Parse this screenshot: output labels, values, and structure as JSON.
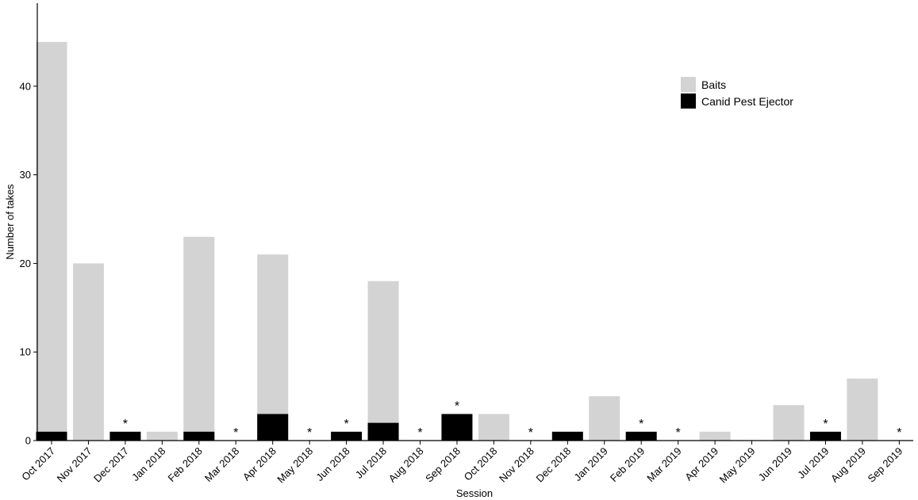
{
  "chart_data": {
    "type": "bar",
    "stacked": false,
    "xlabel": "Session",
    "ylabel": "Number of takes",
    "ylim": [
      0,
      49
    ],
    "yticks": [
      0,
      10,
      20,
      30,
      40
    ],
    "grid": false,
    "legend_position": "top-right",
    "categories": [
      "Oct 2017",
      "Nov 2017",
      "Dec 2017",
      "Jan 2018",
      "Feb 2018",
      "Mar 2018",
      "Apr 2018",
      "May 2018",
      "Jun 2018",
      "Jul 2018",
      "Aug 2018",
      "Sep 2018",
      "Oct 2018",
      "Nov 2018",
      "Dec 2018",
      "Jan 2019",
      "Feb 2019",
      "Mar 2019",
      "Apr 2019",
      "May 2019",
      "Jun 2019",
      "Jul 2019",
      "Aug 2019",
      "Sep 2019"
    ],
    "series": [
      {
        "name": "Baits",
        "color": "#d3d3d3",
        "values": [
          45,
          20,
          0,
          1,
          23,
          0,
          21,
          0,
          0,
          18,
          0,
          0,
          3,
          0,
          0,
          5,
          0,
          0,
          1,
          0,
          4,
          0,
          7,
          0
        ]
      },
      {
        "name": "Canid Pest Ejector",
        "color": "#000000",
        "values": [
          1,
          0,
          1,
          0,
          1,
          0,
          3,
          0,
          1,
          2,
          0,
          3,
          0,
          0,
          1,
          0,
          1,
          0,
          0,
          0,
          0,
          1,
          0,
          0
        ]
      }
    ],
    "annotations": {
      "symbol": "*",
      "categories": [
        "Dec 2017",
        "Mar 2018",
        "May 2018",
        "Jun 2018",
        "Aug 2018",
        "Sep 2018",
        "Nov 2018",
        "Feb 2019",
        "Mar 2019",
        "Jul 2019",
        "Sep 2019"
      ]
    }
  }
}
